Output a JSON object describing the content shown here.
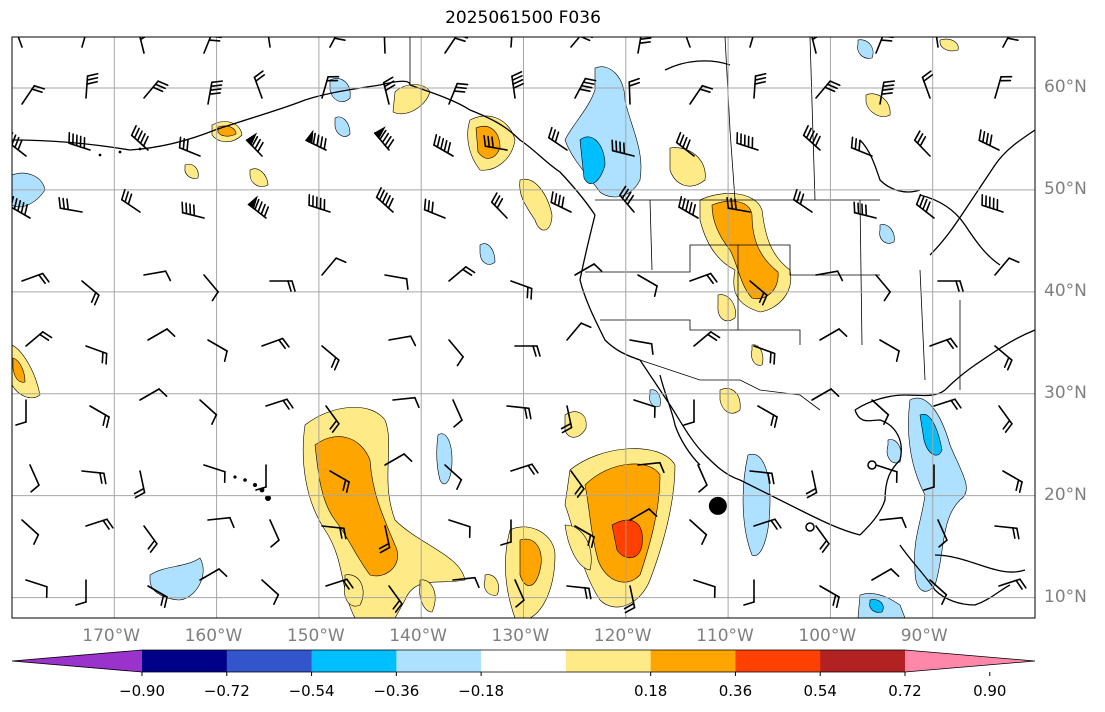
{
  "title": "2025061500 F036",
  "map": {
    "projection": "plate-carree",
    "lon_range": [
      -180,
      -80
    ],
    "lat_range": [
      8,
      65
    ],
    "gridlines": true,
    "lon_labels": [
      "170°W",
      "160°W",
      "150°W",
      "140°W",
      "130°W",
      "120°W",
      "110°W",
      "100°W",
      "90°W"
    ],
    "lat_labels": [
      "60°N",
      "50°N",
      "40°N",
      "30°N",
      "20°N",
      "10°N"
    ],
    "marker": {
      "lon": -111,
      "lat": 19,
      "label": ""
    },
    "wind_barbs": true,
    "colors": {
      "grid": "#a6a6a6",
      "coast": "#000000",
      "labels": "#7f7f7f"
    }
  },
  "colorbar": {
    "extend": "both",
    "colors": [
      "#9933cc",
      "#000088",
      "#3355cc",
      "#00bfff",
      "#aee0ff",
      "#ffffff",
      "#ffea88",
      "#ffa500",
      "#ff4000",
      "#b22222",
      "#ff88aa"
    ],
    "ticks": [
      "−0.90",
      "−0.72",
      "−0.54",
      "−0.36",
      "−0.18",
      "0.18",
      "0.36",
      "0.54",
      "0.72",
      "0.90"
    ]
  }
}
